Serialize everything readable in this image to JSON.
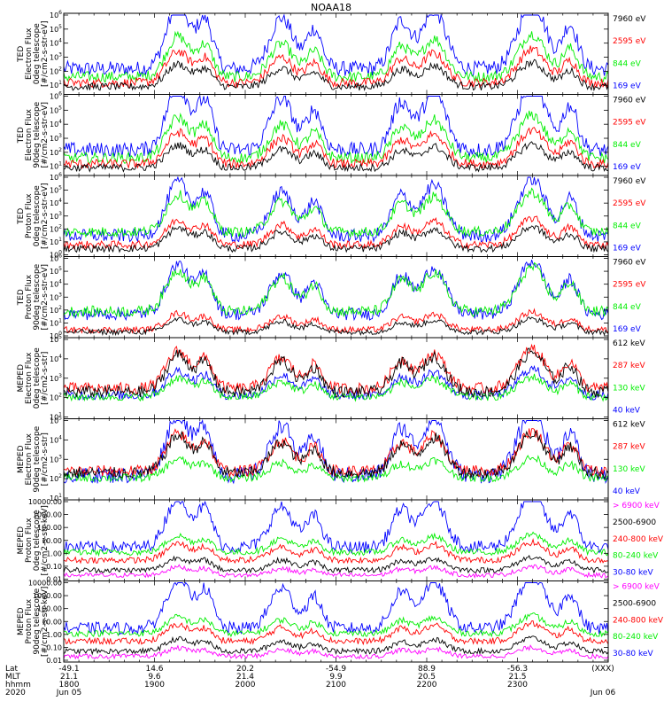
{
  "chart_data": {
    "type": "line",
    "title": "NOAA18",
    "panels": [
      {
        "ylabel_lines": [
          "TED",
          "Electron Flux",
          "0deg telescope",
          "[#/cm2-s-str-eV]"
        ],
        "y_scale": "log",
        "y_ticks": [
          "10^1",
          "10^2",
          "10^3",
          "10^4",
          "10^5",
          "10^6"
        ],
        "y_range": [
          3,
          1000000
        ],
        "series": [
          {
            "name": "7960 eV",
            "color": "#000000",
            "baseline": 8,
            "activity": 0.5
          },
          {
            "name": "2595 eV",
            "color": "#ff0000",
            "baseline": 15,
            "activity": 0.7
          },
          {
            "name": "844 eV",
            "color": "#00ee00",
            "baseline": 40,
            "activity": 0.9
          },
          {
            "name": "169 eV",
            "color": "#0000ff",
            "baseline": 150,
            "activity": 1.4
          }
        ]
      },
      {
        "ylabel_lines": [
          "TED",
          "Electron Flux",
          "90deg telescope",
          "[#/cm2-s-str-eV]"
        ],
        "y_scale": "log",
        "y_ticks": [
          "10^1",
          "10^2",
          "10^3",
          "10^4",
          "10^5",
          "10^6"
        ],
        "y_range": [
          3,
          1000000
        ],
        "series": [
          {
            "name": "7960 eV",
            "color": "#000000",
            "baseline": 8,
            "activity": 0.5
          },
          {
            "name": "2595 eV",
            "color": "#ff0000",
            "baseline": 15,
            "activity": 0.7
          },
          {
            "name": "844 eV",
            "color": "#00ee00",
            "baseline": 40,
            "activity": 0.9
          },
          {
            "name": "169 eV",
            "color": "#0000ff",
            "baseline": 150,
            "activity": 1.4
          }
        ]
      },
      {
        "ylabel_lines": [
          "TED",
          "Proton Flux",
          "0deg telescope",
          "[#/cm2-s-str-eV]"
        ],
        "y_scale": "log",
        "y_ticks": [
          "10^0",
          "10^1",
          "10^2",
          "10^3",
          "10^4",
          "10^5",
          "10^6"
        ],
        "y_range": [
          1,
          1000000
        ],
        "series": [
          {
            "name": "7960 eV",
            "color": "#000000",
            "baseline": 3,
            "activity": 0.5
          },
          {
            "name": "2595 eV",
            "color": "#ff0000",
            "baseline": 6,
            "activity": 0.6
          },
          {
            "name": "844 eV",
            "color": "#00ee00",
            "baseline": 60,
            "activity": 0.9
          },
          {
            "name": "169 eV",
            "color": "#0000ff",
            "baseline": 30,
            "activity": 1.3
          }
        ]
      },
      {
        "ylabel_lines": [
          "TED",
          "Proton Flux",
          "90deg telescope",
          "[#/cm2-s-str-eV]"
        ],
        "y_scale": "log",
        "y_ticks": [
          "10^0",
          "10^1",
          "10^2",
          "10^3",
          "10^4",
          "10^5",
          "10^6"
        ],
        "y_range": [
          1,
          1000000
        ],
        "series": [
          {
            "name": "7960 eV",
            "color": "#000000",
            "baseline": 2,
            "activity": 0.3
          },
          {
            "name": "2595 eV",
            "color": "#ff0000",
            "baseline": 3,
            "activity": 0.4
          },
          {
            "name": "844 eV",
            "color": "#00ee00",
            "baseline": 80,
            "activity": 1.0
          },
          {
            "name": "169 eV",
            "color": "#0000ff",
            "baseline": 50,
            "activity": 1.2
          }
        ]
      },
      {
        "ylabel_lines": [
          "MEPED",
          "Electron Flux",
          "0deg telescope",
          "[#/cm2-s-str]"
        ],
        "y_scale": "log",
        "y_ticks": [
          "10^1",
          "10^2",
          "10^3",
          "10^4",
          "10^5"
        ],
        "y_range": [
          10,
          100000
        ],
        "series": [
          {
            "name": "612 keV",
            "color": "#000000",
            "baseline": 200,
            "activity": 0.6
          },
          {
            "name": "287 keV",
            "color": "#ff0000",
            "baseline": 300,
            "activity": 0.6
          },
          {
            "name": "130 keV",
            "color": "#00ee00",
            "baseline": 110,
            "activity": 0.3
          },
          {
            "name": "40 keV",
            "color": "#0000ff",
            "baseline": 130,
            "activity": 0.4
          }
        ]
      },
      {
        "ylabel_lines": [
          "MEPED",
          "Electron Flux",
          "90deg telescope",
          "[#/cm2-s-str]"
        ],
        "y_scale": "log",
        "y_ticks": [
          "10^1",
          "10^2",
          "10^3",
          "10^4",
          "10^5"
        ],
        "y_range": [
          10,
          100000
        ],
        "series": [
          {
            "name": "612 keV",
            "color": "#000000",
            "baseline": 200,
            "activity": 0.6
          },
          {
            "name": "287 keV",
            "color": "#ff0000",
            "baseline": 250,
            "activity": 0.6
          },
          {
            "name": "130 keV",
            "color": "#00ee00",
            "baseline": 110,
            "activity": 0.3
          },
          {
            "name": "40 keV",
            "color": "#0000ff",
            "baseline": 150,
            "activity": 1.0
          }
        ]
      },
      {
        "ylabel_lines": [
          "MEPED",
          "Proton Flux",
          "0deg telescope",
          "[#/cm2-s-str-keV]"
        ],
        "y_scale": "log",
        "y_ticks": [
          "0.01",
          "0.10",
          "1.00",
          "10.00",
          "100.00",
          "1000.00",
          "10000.00"
        ],
        "y_range": [
          0.01,
          10000
        ],
        "series": [
          {
            "name": "> 6900 keV",
            "color": "#ff00ff",
            "baseline": 0.02,
            "activity": 0.2
          },
          {
            "name": "2500-6900",
            "color": "#000000",
            "baseline": 0.05,
            "activity": 0.3
          },
          {
            "name": "240-800 keV",
            "color": "#ff0000",
            "baseline": 0.3,
            "activity": 0.4
          },
          {
            "name": "80-240 keV",
            "color": "#00ee00",
            "baseline": 1.2,
            "activity": 0.4
          },
          {
            "name": "30-80 keV",
            "color": "#0000ff",
            "baseline": 3,
            "activity": 1.2
          }
        ]
      },
      {
        "ylabel_lines": [
          "MEPED",
          "Proton Flux",
          "90deg telescope",
          "[#/cm2-s-str-keV]"
        ],
        "y_scale": "log",
        "y_ticks": [
          "0.01",
          "0.10",
          "1.00",
          "10.00",
          "100.00",
          "1000.00",
          "10000.00"
        ],
        "y_range": [
          0.01,
          10000
        ],
        "series": [
          {
            "name": "> 6900 keV",
            "color": "#ff00ff",
            "baseline": 0.02,
            "activity": 0.2
          },
          {
            "name": "2500-6900",
            "color": "#000000",
            "baseline": 0.05,
            "activity": 0.3
          },
          {
            "name": "240-800 keV",
            "color": "#ff0000",
            "baseline": 0.3,
            "activity": 0.4
          },
          {
            "name": "80-240 keV",
            "color": "#00ee00",
            "baseline": 1.2,
            "activity": 0.4
          },
          {
            "name": "30-80 keV",
            "color": "#0000ff",
            "baseline": 3,
            "activity": 1.2
          }
        ]
      }
    ],
    "x_axis": {
      "row_labels": [
        "Lat",
        "MLT",
        "hhmm",
        "2020"
      ],
      "ticks": [
        {
          "lat": "-49.1",
          "mlt": "21.1",
          "hhmm": "1800",
          "date": "Jun 05"
        },
        {
          "lat": "14.6",
          "mlt": "9.6",
          "hhmm": "1900",
          "date": ""
        },
        {
          "lat": "20.2",
          "mlt": "21.4",
          "hhmm": "2000",
          "date": ""
        },
        {
          "lat": "-54.9",
          "mlt": "9.9",
          "hhmm": "2100",
          "date": ""
        },
        {
          "lat": "88.9",
          "mlt": "20.5",
          "hhmm": "2200",
          "date": ""
        },
        {
          "lat": "-56.3",
          "mlt": "21.5",
          "hhmm": "2300",
          "date": ""
        },
        {
          "lat": "(XXX)",
          "mlt": "",
          "hhmm": "",
          "date": "Jun 06"
        }
      ]
    },
    "passes": [
      {
        "center": 0.21,
        "width": 0.03,
        "amplitude": 3.2
      },
      {
        "center": 0.26,
        "width": 0.02,
        "amplitude": 2.4
      },
      {
        "center": 0.4,
        "width": 0.03,
        "amplitude": 2.6
      },
      {
        "center": 0.46,
        "width": 0.02,
        "amplitude": 2.0
      },
      {
        "center": 0.62,
        "width": 0.025,
        "amplitude": 2.4
      },
      {
        "center": 0.68,
        "width": 0.03,
        "amplitude": 3.0
      },
      {
        "center": 0.86,
        "width": 0.035,
        "amplitude": 3.4
      },
      {
        "center": 0.93,
        "width": 0.02,
        "amplitude": 2.2
      }
    ]
  }
}
